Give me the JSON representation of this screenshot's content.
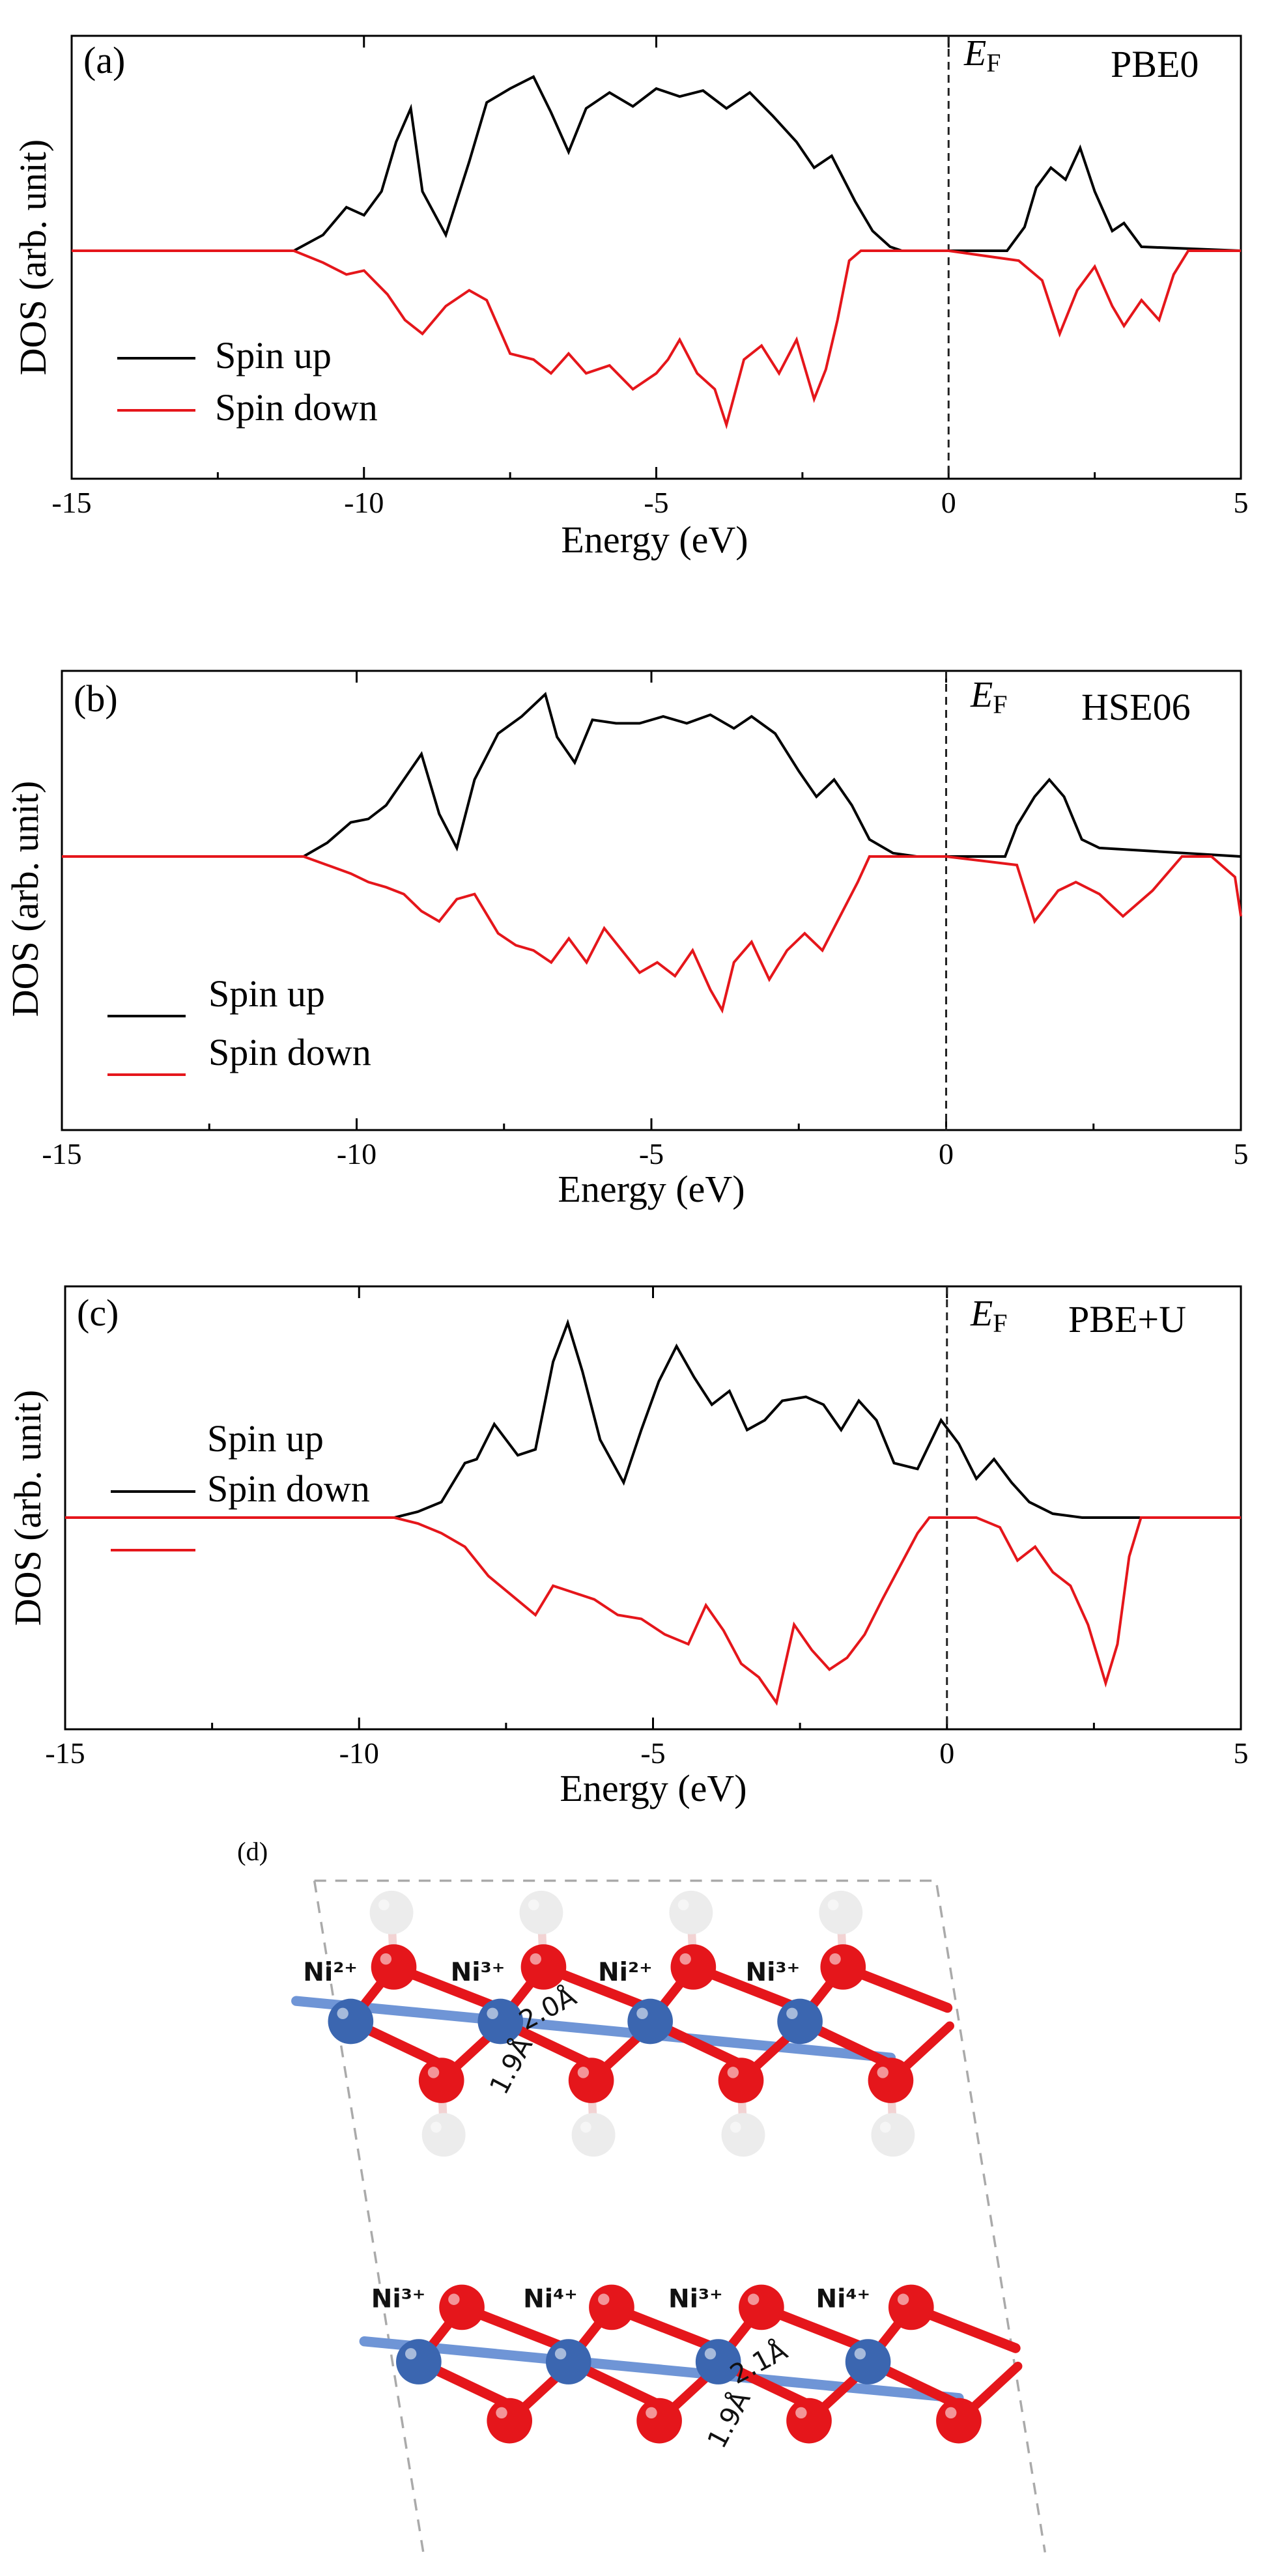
{
  "chart_data": [
    {
      "type": "line",
      "panel_label": "(a)",
      "method": "PBE0",
      "fermi_label_main": "E",
      "fermi_label_sub": "F",
      "xlabel": "Energy (eV)",
      "ylabel": "DOS (arb. unit)",
      "xlim": [
        -15,
        5
      ],
      "ylim": [
        -1,
        1
      ],
      "xticks": [
        -15,
        -10,
        -5,
        0,
        5
      ],
      "legend": {
        "placement": "bottom-left",
        "entries": [
          "Spin up",
          "Spin down"
        ]
      },
      "series": [
        {
          "name": "Spin up",
          "color": "#000000",
          "x": [
            -15,
            -11.2,
            -10.7,
            -10.3,
            -10.0,
            -9.7,
            -9.45,
            -9.2,
            -9.0,
            -8.6,
            -8.2,
            -7.9,
            -7.5,
            -7.1,
            -6.8,
            -6.5,
            -6.2,
            -5.8,
            -5.4,
            -5.0,
            -4.6,
            -4.2,
            -3.8,
            -3.4,
            -3.0,
            -2.6,
            -2.3,
            -2.0,
            -1.6,
            -1.3,
            -1.0,
            -0.8,
            0,
            1.0,
            1.3,
            1.5,
            1.75,
            2.0,
            2.25,
            2.5,
            2.8,
            3.0,
            3.3,
            5
          ],
          "y": [
            0,
            0,
            0.08,
            0.22,
            0.18,
            0.3,
            0.55,
            0.72,
            0.3,
            0.08,
            0.45,
            0.75,
            0.82,
            0.88,
            0.7,
            0.5,
            0.72,
            0.8,
            0.73,
            0.82,
            0.78,
            0.81,
            0.72,
            0.8,
            0.68,
            0.55,
            0.42,
            0.48,
            0.25,
            0.1,
            0.02,
            0,
            0,
            0,
            0.12,
            0.32,
            0.42,
            0.36,
            0.52,
            0.3,
            0.1,
            0.14,
            0.02,
            0
          ]
        },
        {
          "name": "Spin down",
          "color": "#e5161b",
          "x": [
            -15,
            -11.2,
            -10.7,
            -10.3,
            -10.0,
            -9.6,
            -9.3,
            -9.0,
            -8.6,
            -8.2,
            -7.9,
            -7.5,
            -7.1,
            -6.8,
            -6.5,
            -6.2,
            -5.8,
            -5.4,
            -5.0,
            -4.8,
            -4.6,
            -4.3,
            -4.0,
            -3.8,
            -3.5,
            -3.2,
            -2.9,
            -2.6,
            -2.3,
            -2.1,
            -1.9,
            -1.7,
            -1.5,
            0,
            1.2,
            1.6,
            1.9,
            2.2,
            2.5,
            2.8,
            3.0,
            3.3,
            3.6,
            3.85,
            4.1,
            5
          ],
          "y": [
            0,
            0,
            -0.06,
            -0.12,
            -0.1,
            -0.22,
            -0.35,
            -0.42,
            -0.28,
            -0.2,
            -0.25,
            -0.52,
            -0.55,
            -0.62,
            -0.52,
            -0.62,
            -0.58,
            -0.7,
            -0.62,
            -0.55,
            -0.45,
            -0.62,
            -0.7,
            -0.88,
            -0.55,
            -0.48,
            -0.62,
            -0.45,
            -0.75,
            -0.6,
            -0.35,
            -0.05,
            0,
            0,
            -0.05,
            -0.15,
            -0.42,
            -0.2,
            -0.08,
            -0.28,
            -0.38,
            -0.25,
            -0.35,
            -0.12,
            0,
            0
          ]
        }
      ]
    },
    {
      "type": "line",
      "panel_label": "(b)",
      "method": "HSE06",
      "fermi_label_main": "E",
      "fermi_label_sub": "F",
      "xlabel": "Energy (eV)",
      "ylabel": "DOS (arb. unit)",
      "xlim": [
        -15,
        5
      ],
      "ylim": [
        -1,
        1
      ],
      "xticks": [
        -15,
        -10,
        -5,
        0,
        5
      ],
      "legend": {
        "placement": "bottom-left",
        "entries": [
          "Spin up",
          "Spin down"
        ]
      },
      "series": [
        {
          "name": "Spin up",
          "color": "#000000",
          "x": [
            -15,
            -10.9,
            -10.5,
            -10.1,
            -9.8,
            -9.5,
            -9.2,
            -8.9,
            -8.6,
            -8.3,
            -8.0,
            -7.6,
            -7.2,
            -6.8,
            -6.6,
            -6.3,
            -6.0,
            -5.6,
            -5.2,
            -4.8,
            -4.4,
            -4.0,
            -3.6,
            -3.3,
            -2.9,
            -2.5,
            -2.2,
            -1.9,
            -1.6,
            -1.3,
            -0.9,
            -0.5,
            0,
            1.0,
            1.2,
            1.5,
            1.75,
            2.0,
            2.3,
            2.6,
            5
          ],
          "y": [
            0,
            0,
            0.08,
            0.2,
            0.22,
            0.3,
            0.45,
            0.6,
            0.25,
            0.05,
            0.45,
            0.72,
            0.82,
            0.95,
            0.7,
            0.55,
            0.8,
            0.78,
            0.78,
            0.82,
            0.78,
            0.83,
            0.75,
            0.82,
            0.72,
            0.5,
            0.35,
            0.45,
            0.3,
            0.1,
            0.02,
            0,
            0,
            0,
            0.18,
            0.35,
            0.45,
            0.35,
            0.1,
            0.05,
            0
          ]
        },
        {
          "name": "Spin down",
          "color": "#e5161b",
          "x": [
            -15,
            -10.9,
            -10.5,
            -10.1,
            -9.8,
            -9.5,
            -9.2,
            -8.9,
            -8.6,
            -8.3,
            -8.0,
            -7.6,
            -7.3,
            -7.0,
            -6.7,
            -6.4,
            -6.1,
            -5.8,
            -5.5,
            -5.2,
            -4.9,
            -4.6,
            -4.3,
            -4.0,
            -3.8,
            -3.6,
            -3.3,
            -3.0,
            -2.7,
            -2.4,
            -2.1,
            -1.8,
            -1.5,
            -1.3,
            0,
            1.2,
            1.5,
            1.9,
            2.2,
            2.6,
            3.0,
            3.5,
            4.0,
            4.5,
            4.9,
            5
          ],
          "y": [
            0,
            0,
            -0.05,
            -0.1,
            -0.15,
            -0.18,
            -0.22,
            -0.32,
            -0.38,
            -0.25,
            -0.22,
            -0.45,
            -0.52,
            -0.55,
            -0.62,
            -0.48,
            -0.62,
            -0.42,
            -0.55,
            -0.68,
            -0.62,
            -0.7,
            -0.55,
            -0.78,
            -0.9,
            -0.62,
            -0.5,
            -0.72,
            -0.55,
            -0.45,
            -0.55,
            -0.35,
            -0.15,
            0,
            0,
            -0.05,
            -0.38,
            -0.2,
            -0.15,
            -0.22,
            -0.35,
            -0.2,
            0,
            0,
            -0.12,
            -0.35
          ]
        }
      ]
    },
    {
      "type": "line",
      "panel_label": "(c)",
      "method": "PBE+U",
      "fermi_label_main": "E",
      "fermi_label_sub": "F",
      "xlabel": "Energy (eV)",
      "ylabel": "DOS (arb. unit)",
      "xlim": [
        -15,
        5
      ],
      "ylim": [
        -1,
        1
      ],
      "xticks": [
        -15,
        -10,
        -5,
        0,
        5
      ],
      "legend": {
        "placement": "bottom-left",
        "entries": [
          "Spin up",
          "Spin down"
        ]
      },
      "series": [
        {
          "name": "Spin up",
          "color": "#000000",
          "x": [
            -15,
            -9.4,
            -9.0,
            -8.6,
            -8.2,
            -8.0,
            -7.7,
            -7.3,
            -7.0,
            -6.7,
            -6.45,
            -6.2,
            -5.9,
            -5.5,
            -5.2,
            -4.9,
            -4.6,
            -4.3,
            -4.0,
            -3.7,
            -3.4,
            -3.1,
            -2.8,
            -2.4,
            -2.1,
            -1.8,
            -1.5,
            -1.2,
            -0.9,
            -0.5,
            -0.1,
            0.2,
            0.5,
            0.8,
            1.1,
            1.4,
            1.8,
            2.3,
            5
          ],
          "y": [
            0,
            0,
            0.03,
            0.08,
            0.28,
            0.3,
            0.48,
            0.32,
            0.35,
            0.8,
            1.0,
            0.75,
            0.4,
            0.18,
            0.45,
            0.7,
            0.88,
            0.72,
            0.58,
            0.65,
            0.45,
            0.5,
            0.6,
            0.62,
            0.58,
            0.45,
            0.6,
            0.5,
            0.28,
            0.25,
            0.5,
            0.38,
            0.2,
            0.3,
            0.18,
            0.08,
            0.02,
            0,
            0
          ]
        },
        {
          "name": "Spin down",
          "color": "#e5161b",
          "x": [
            -15,
            -9.4,
            -9.0,
            -8.6,
            -8.2,
            -7.8,
            -7.4,
            -7.0,
            -6.7,
            -6.4,
            -6.0,
            -5.6,
            -5.2,
            -4.8,
            -4.4,
            -4.1,
            -3.8,
            -3.5,
            -3.2,
            -2.9,
            -2.6,
            -2.3,
            -2.0,
            -1.7,
            -1.4,
            -1.1,
            -0.8,
            -0.5,
            -0.3,
            0,
            0.5,
            0.9,
            1.2,
            1.5,
            1.8,
            2.1,
            2.4,
            2.7,
            2.9,
            3.1,
            3.3,
            5
          ],
          "y": [
            0,
            0,
            -0.03,
            -0.08,
            -0.15,
            -0.3,
            -0.4,
            -0.5,
            -0.35,
            -0.38,
            -0.42,
            -0.5,
            -0.52,
            -0.6,
            -0.65,
            -0.45,
            -0.58,
            -0.75,
            -0.82,
            -0.95,
            -0.55,
            -0.68,
            -0.78,
            -0.72,
            -0.6,
            -0.42,
            -0.25,
            -0.08,
            0,
            0,
            0,
            -0.05,
            -0.22,
            -0.15,
            -0.28,
            -0.35,
            -0.55,
            -0.85,
            -0.65,
            -0.2,
            0,
            0
          ]
        }
      ]
    }
  ],
  "structure": {
    "panel_label": "(d)",
    "top_layer_labels": [
      "Ni²⁺",
      "Ni³⁺",
      "Ni²⁺",
      "Ni³⁺"
    ],
    "bottom_layer_labels": [
      "Ni³⁺",
      "Ni⁴⁺",
      "Ni³⁺",
      "Ni⁴⁺"
    ],
    "top_bond_lengths": [
      "2.0Å",
      "1.9Å"
    ],
    "bottom_bond_lengths": [
      "2.1Å",
      "1.9Å"
    ],
    "colors": {
      "ni": "#3b66b0",
      "oxygen": "#e5161b",
      "hydrogen": "#ececec"
    }
  }
}
